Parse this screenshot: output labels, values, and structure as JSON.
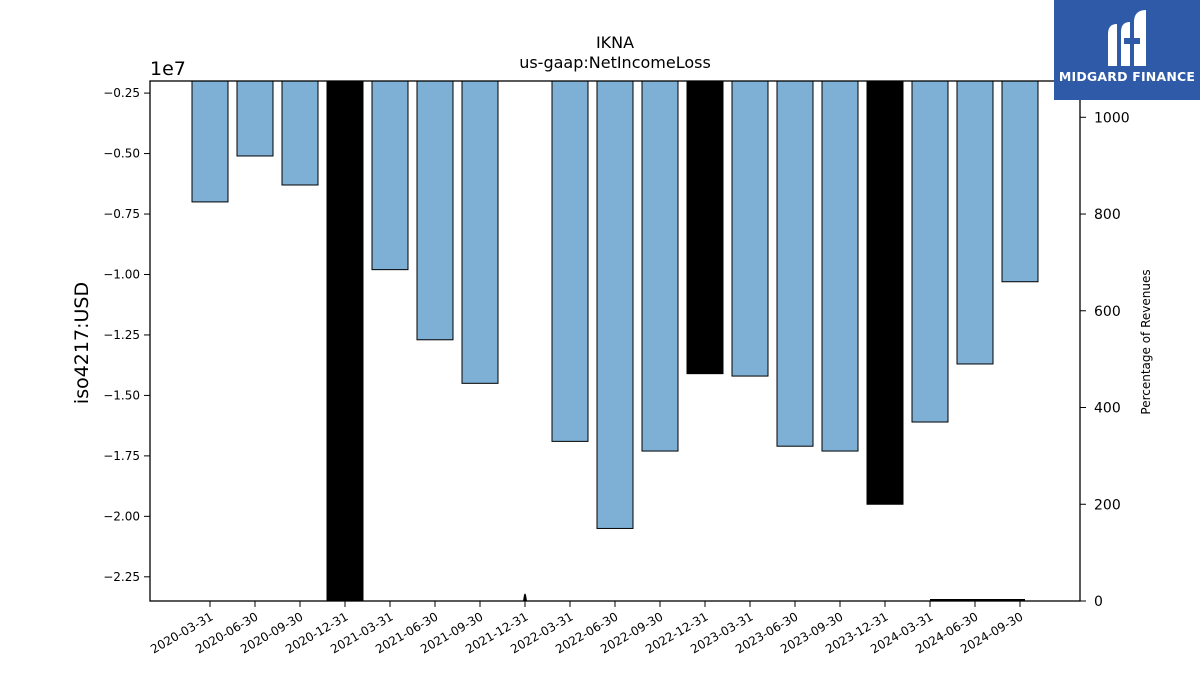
{
  "chart_data": {
    "type": "bar",
    "title": "IKNA",
    "subtitle": "us-gaap:NetIncomeLoss",
    "ylabel": "iso4217:USD",
    "y2label": "Percentage of Revenues",
    "y_multiplier_label": "1e7",
    "categories": [
      "2020-03-31",
      "2020-06-30",
      "2020-09-30",
      "2020-12-31",
      "2021-03-31",
      "2021-06-30",
      "2021-09-30",
      "2021-12-31",
      "2022-03-31",
      "2022-06-30",
      "2022-09-30",
      "2022-12-31",
      "2023-03-31",
      "2023-06-30",
      "2023-09-30",
      "2023-12-31",
      "2024-03-31",
      "2024-06-30",
      "2024-09-30"
    ],
    "series": [
      {
        "values": [
          -7000000,
          -5100000,
          -6300000,
          -23500000,
          -9800000,
          -12700000,
          -14500000,
          null,
          -16900000,
          -20500000,
          -17300000,
          -14100000,
          -14200000,
          -17100000,
          -17300000,
          -19500000,
          -16100000,
          -13700000,
          -10300000
        ],
        "colors": [
          "#7eb0d5",
          "#7eb0d5",
          "#7eb0d5",
          "#000000",
          "#7eb0d5",
          "#7eb0d5",
          "#7eb0d5",
          "#7eb0d5",
          "#7eb0d5",
          "#7eb0d5",
          "#7eb0d5",
          "#000000",
          "#7eb0d5",
          "#7eb0d5",
          "#7eb0d5",
          "#000000",
          "#7eb0d5",
          "#7eb0d5",
          "#7eb0d5"
        ]
      }
    ],
    "y_ticks": [
      -0.25,
      -0.5,
      -0.75,
      -1.0,
      -1.25,
      -1.5,
      -1.75,
      -2.0,
      -2.25
    ],
    "y_tick_labels": [
      "−0.25",
      "−0.50",
      "−0.75",
      "−1.00",
      "−1.25",
      "−1.50",
      "−1.75",
      "−2.00",
      "−2.25"
    ],
    "ylim": [
      -0.2,
      -2.35
    ],
    "y2_ticks": [
      0,
      200,
      400,
      600,
      800,
      1000
    ],
    "y2lim": [
      0,
      1075
    ],
    "grid": false,
    "legend": "none"
  },
  "logo": {
    "text": "MIDGARD FINANCE",
    "bg": "#2f5aa8"
  }
}
